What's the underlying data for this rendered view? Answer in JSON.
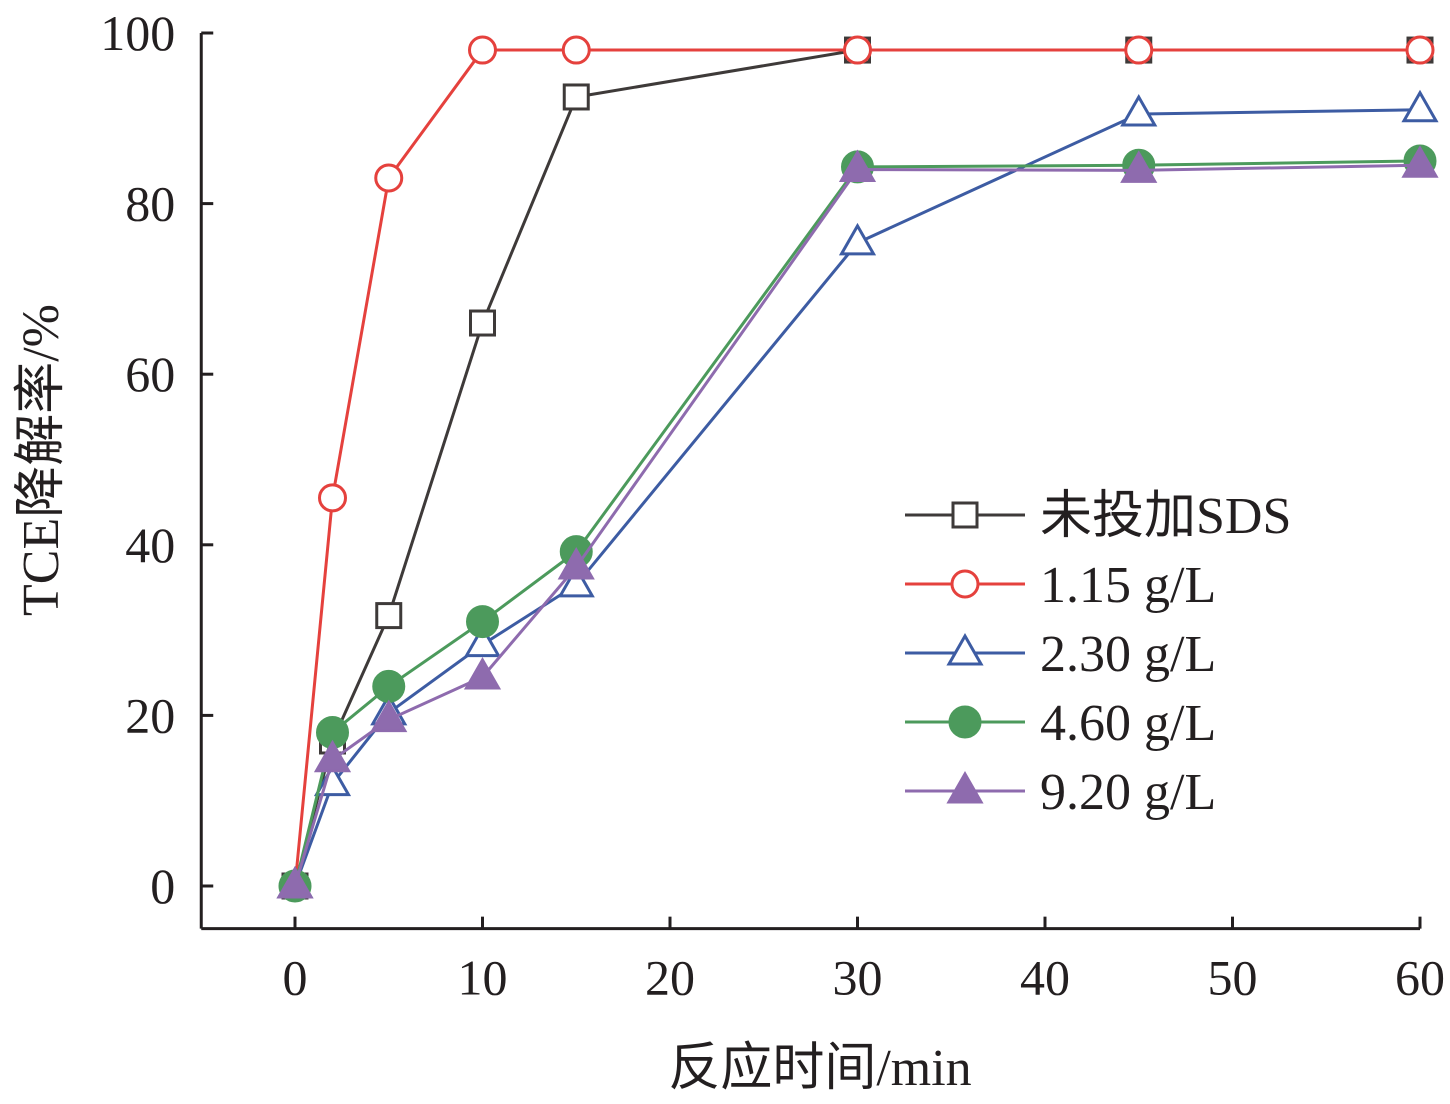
{
  "chart_data": {
    "type": "line",
    "title": "",
    "xlabel": "反应时间/min",
    "ylabel": "TCE降解率/%",
    "xlim": [
      -5,
      60
    ],
    "ylim": [
      -5,
      100
    ],
    "xticks": [
      0,
      10,
      20,
      30,
      40,
      50,
      60
    ],
    "yticks": [
      0,
      20,
      40,
      60,
      80,
      100
    ],
    "grid": false,
    "legend_position": "center-right",
    "x": [
      0,
      2,
      5,
      10,
      15,
      30,
      45,
      60
    ],
    "series": [
      {
        "name": "未投加SDS",
        "color": "#3e3a39",
        "marker": "square-open",
        "values": [
          0,
          17,
          31.7,
          66,
          92.5,
          98,
          98,
          98
        ]
      },
      {
        "name": "1.15 g/L",
        "color": "#e5413d",
        "marker": "circle-open",
        "values": [
          0,
          45.5,
          83,
          98,
          98,
          98,
          98,
          98
        ]
      },
      {
        "name": "2.30 g/L",
        "color": "#3d5ca3",
        "marker": "triangle-open",
        "values": [
          0,
          12,
          20.3,
          28.3,
          35.3,
          75.4,
          90.5,
          91
        ]
      },
      {
        "name": "4.60 g/L",
        "color": "#4c9a5c",
        "marker": "circle-filled",
        "values": [
          0,
          18,
          23.4,
          31,
          39.2,
          84.3,
          84.5,
          85
        ]
      },
      {
        "name": "9.20 g/L",
        "color": "#8e6bae",
        "marker": "triangle-filled",
        "values": [
          0,
          14.8,
          19.5,
          24.5,
          37.4,
          84,
          83.9,
          84.5
        ]
      }
    ]
  }
}
